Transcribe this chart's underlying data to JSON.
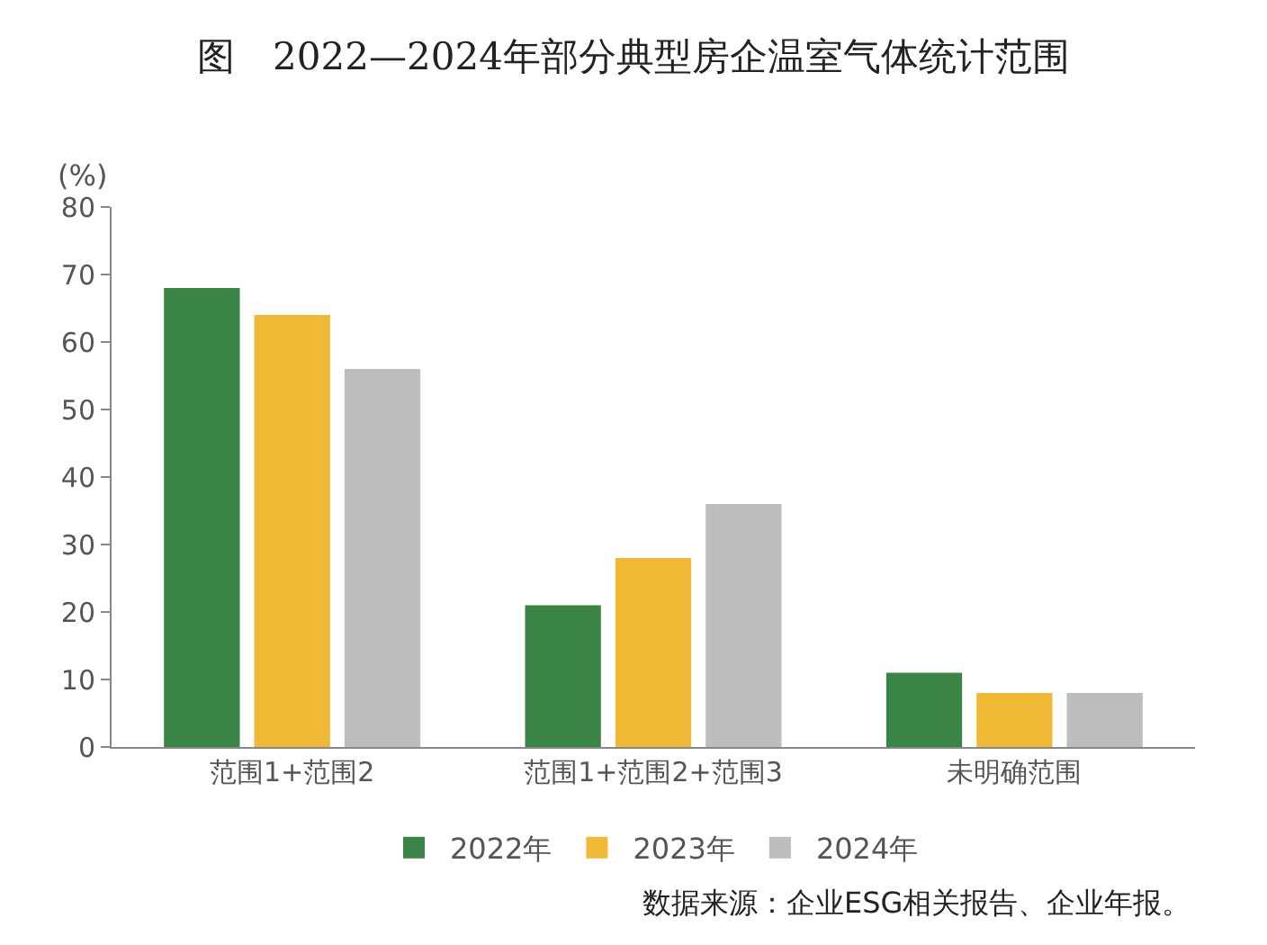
{
  "chart_data": {
    "type": "bar",
    "title": "图　2022—2024年部分典型房企温室气体统计范围",
    "ylabel": "(%)",
    "categories": [
      "范围1+范围2",
      "范围1+范围2+范围3",
      "未明确范围"
    ],
    "series": [
      {
        "name": "2022年",
        "color": "#3a8446",
        "values": [
          68,
          21,
          11
        ]
      },
      {
        "name": "2023年",
        "color": "#efb935",
        "values": [
          64,
          28,
          8
        ]
      },
      {
        "name": "2024年",
        "color": "#bdbdc0",
        "values": [
          56,
          36,
          8
        ]
      }
    ],
    "ylim": [
      0,
      80
    ],
    "yticks": [
      0,
      10,
      20,
      30,
      40,
      50,
      60,
      70,
      80
    ],
    "legend": "bottom",
    "annotations": [
      "数据来源：企业ESG相关报告、企业年报。"
    ]
  }
}
